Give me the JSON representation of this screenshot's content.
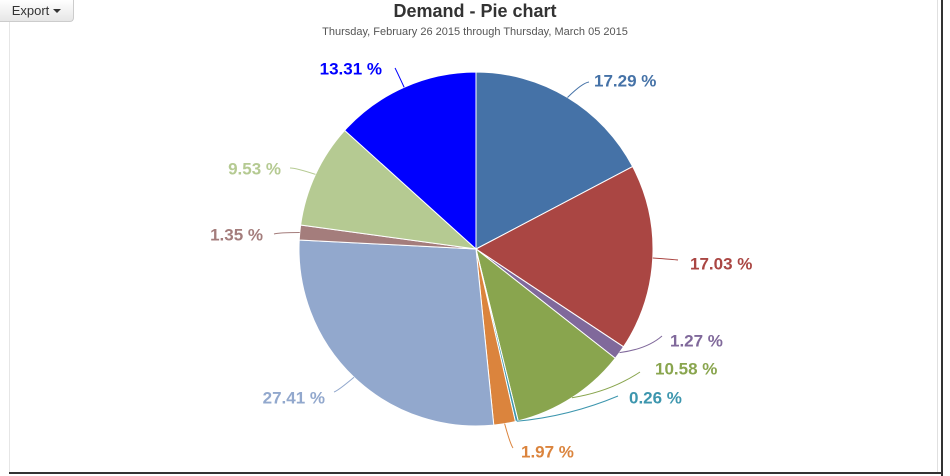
{
  "export_button": {
    "label": "Export"
  },
  "chart_data": {
    "type": "pie",
    "title": "Demand - Pie chart",
    "subtitle": "Thursday, February 26 2015 through Thursday, March 05 2015",
    "slices": [
      {
        "label": "17.29 %",
        "value": 17.29,
        "color": "#4572A7"
      },
      {
        "label": "17.03 %",
        "value": 17.03,
        "color": "#AA4643"
      },
      {
        "label": "1.27 %",
        "value": 1.27,
        "color": "#80699B"
      },
      {
        "label": "10.58 %",
        "value": 10.58,
        "color": "#89A54E"
      },
      {
        "label": "0.26 %",
        "value": 0.26,
        "color": "#3D96AE"
      },
      {
        "label": "1.97 %",
        "value": 1.97,
        "color": "#DB843D"
      },
      {
        "label": "27.41 %",
        "value": 27.41,
        "color": "#92A8CD"
      },
      {
        "label": "1.35 %",
        "value": 1.35,
        "color": "#A47D7C"
      },
      {
        "label": "9.53 %",
        "value": 9.53,
        "color": "#B5CA92"
      },
      {
        "label": "13.31 %",
        "value": 13.31,
        "color": "#0000FF"
      }
    ]
  }
}
